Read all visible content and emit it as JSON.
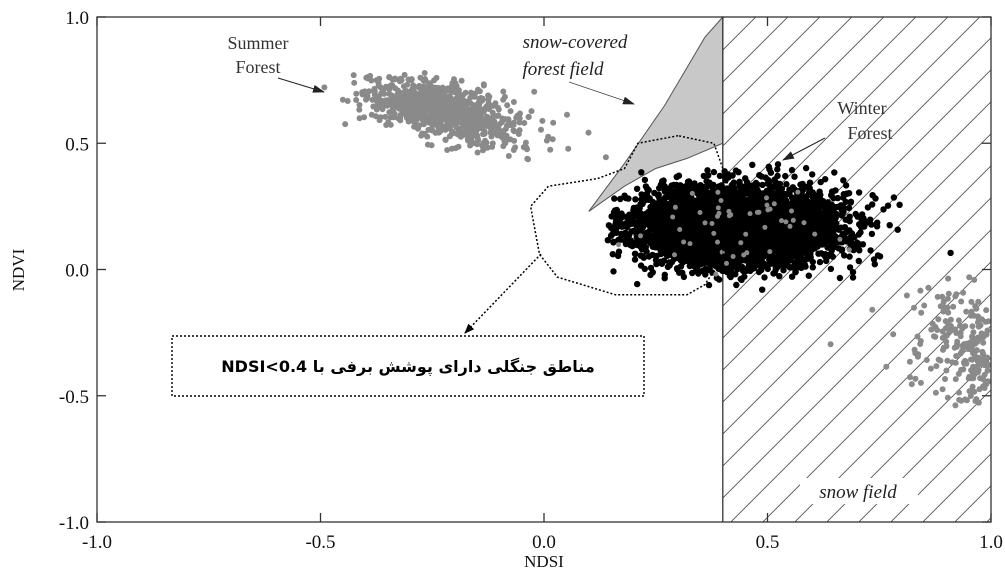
{
  "chart_data": {
    "type": "scatter",
    "title": "",
    "xlabel": "NDSI",
    "ylabel": "NDVI",
    "xlim": [
      -1.0,
      1.0
    ],
    "ylim": [
      -1.0,
      1.0
    ],
    "x_ticks": [
      "-1.0",
      "-0.5",
      "0.0",
      "0.5",
      "1.0"
    ],
    "y_ticks": [
      "1.0",
      "0.5",
      "0.0",
      "-0.5",
      "-1.0"
    ],
    "grid": false,
    "colors": {
      "summer": "#8a8a8a",
      "winter": "#000000",
      "snow_forest_fill": "#c8c8c8"
    },
    "regions": {
      "snow_covered_forest_field": {
        "label": "snow-covered forest field",
        "label_line1": "snow-covered",
        "label_line2": "forest field",
        "polygon": [
          [
            0.1,
            0.23
          ],
          [
            0.18,
            0.42
          ],
          [
            0.27,
            0.65
          ],
          [
            0.32,
            0.8
          ],
          [
            0.36,
            0.92
          ],
          [
            0.4,
            1.0
          ],
          [
            0.4,
            0.5
          ],
          [
            0.32,
            0.44
          ],
          [
            0.25,
            0.4
          ],
          [
            0.18,
            0.33
          ]
        ]
      },
      "snow_field": {
        "label": "snow field",
        "x_min": 0.4,
        "x_max": 1.0
      },
      "ndsi_threshold": 0.4
    },
    "clusters": [
      {
        "name": "summer-forest",
        "center": [
          -0.23,
          0.63
        ],
        "spread": [
          0.09,
          0.055
        ],
        "count": 900
      },
      {
        "name": "winter-forest",
        "center": [
          0.43,
          0.17
        ],
        "spread": [
          0.11,
          0.075
        ],
        "count": 5000
      }
    ],
    "annotations": {
      "summer": {
        "line1": "Summer",
        "line2": "Forest"
      },
      "winter": {
        "line1": "Winter",
        "line2": "Forest"
      },
      "callout": "مناطق جنگلی دارای پوشش برفی با NDSI<0.4"
    }
  }
}
